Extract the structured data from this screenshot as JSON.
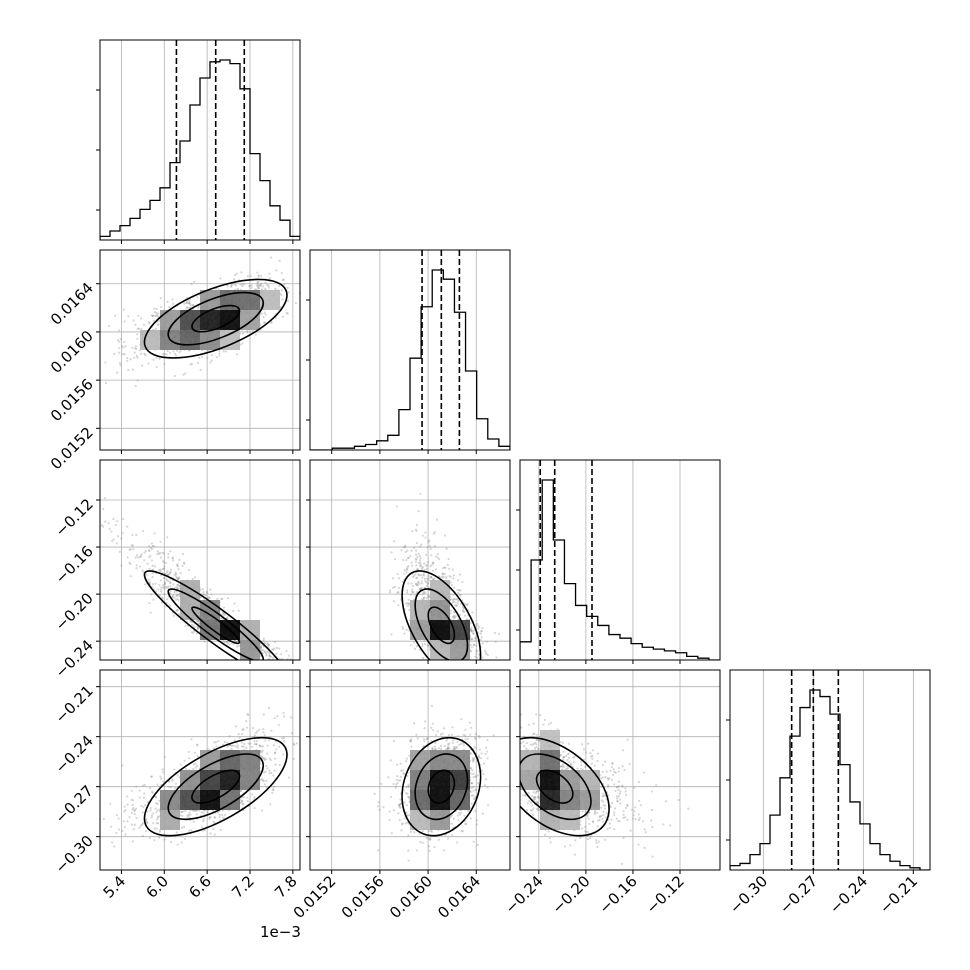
{
  "chart_data": {
    "type": "corner",
    "title": "",
    "grid": true,
    "parameters": [
      {
        "index": 0,
        "range": [
          5.1,
          7.9
        ],
        "ticks": [
          5.4,
          6.0,
          6.6,
          7.2,
          7.8
        ],
        "tick_labels": [
          "5.4",
          "6.0",
          "6.6",
          "7.2",
          "7.8"
        ],
        "offset_label": "1e−3",
        "quantiles": [
          6.17,
          6.72,
          7.12
        ],
        "histogram": [
          0.02,
          0.05,
          0.08,
          0.12,
          0.17,
          0.22,
          0.29,
          0.43,
          0.55,
          0.75,
          0.9,
          0.99,
          1.0,
          0.98,
          0.84,
          0.48,
          0.33,
          0.19,
          0.11,
          0.02
        ]
      },
      {
        "index": 1,
        "range": [
          0.01502,
          0.01668
        ],
        "ticks": [
          0.0152,
          0.0156,
          0.016,
          0.0164
        ],
        "tick_labels": [
          "0.0152",
          "0.0156",
          "0.0160",
          "0.0164"
        ],
        "offset_label": "",
        "quantiles": [
          0.01595,
          0.01611,
          0.01626
        ],
        "histogram": [
          0.0,
          0.0,
          0.01,
          0.01,
          0.02,
          0.03,
          0.05,
          0.08,
          0.22,
          0.5,
          0.78,
          0.98,
          0.93,
          0.75,
          0.43,
          0.17,
          0.06,
          0.02
        ]
      },
      {
        "index": 2,
        "range": [
          -0.256,
          -0.086
        ],
        "ticks": [
          -0.24,
          -0.2,
          -0.16,
          -0.12
        ],
        "tick_labels": [
          "−0.24",
          "−0.20",
          "−0.16",
          "−0.12"
        ],
        "offset_label": "",
        "quantiles": [
          -0.2388,
          -0.2265,
          -0.1948
        ],
        "histogram": [
          0.1,
          0.55,
          0.99,
          0.66,
          0.42,
          0.3,
          0.24,
          0.19,
          0.14,
          0.12,
          0.09,
          0.07,
          0.06,
          0.05,
          0.04,
          0.02,
          0.01,
          0.0
        ]
      },
      {
        "index": 3,
        "range": [
          -0.32,
          -0.2
        ],
        "ticks": [
          -0.3,
          -0.27,
          -0.24,
          -0.21
        ],
        "tick_labels": [
          "−0.30",
          "−0.27",
          "−0.24",
          "−0.21"
        ],
        "offset_label": "",
        "quantiles": [
          -0.283,
          -0.27,
          -0.255
        ],
        "histogram": [
          0.02,
          0.03,
          0.07,
          0.12,
          0.25,
          0.42,
          0.61,
          0.74,
          0.82,
          0.79,
          0.71,
          0.48,
          0.31,
          0.21,
          0.12,
          0.07,
          0.04,
          0.02,
          0.01,
          0.0
        ]
      }
    ],
    "correlations": {
      "1_0": 0.6,
      "2_0": -0.93,
      "2_1": -0.55,
      "3_0": 0.65,
      "3_1": 0.2,
      "3_2": -0.45
    },
    "histogram_style": "step",
    "quantile_line_style": "dashed",
    "contour_levels": 3
  }
}
